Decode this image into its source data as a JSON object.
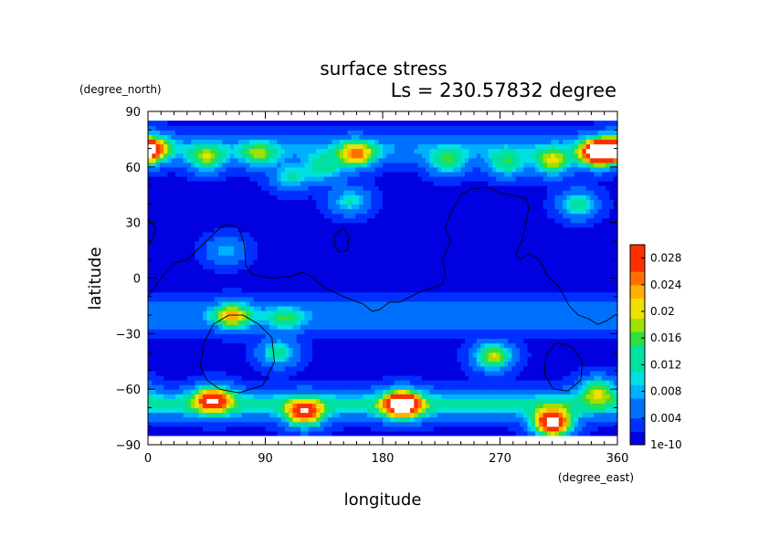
{
  "chart_data": {
    "type": "heatmap",
    "title": "surface stress",
    "subtitle": "Ls = 230.57832 degree",
    "xlabel": "longitude",
    "ylabel": "latitude",
    "x_unit": "(degree_east)",
    "y_unit": "(degree_north)",
    "xlim": [
      0,
      360
    ],
    "ylim": [
      -90,
      90
    ],
    "x_ticks": [
      "0",
      "90",
      "180",
      "270",
      "360"
    ],
    "y_ticks": [
      "90",
      "60",
      "30",
      "0",
      "−30",
      "−60",
      "−90"
    ],
    "colorbar": {
      "min": 0,
      "max": 0.03,
      "tick_labels": [
        "1e-10",
        "0.004",
        "0.008",
        "0.012",
        "0.016",
        "0.02",
        "0.024",
        "0.028"
      ],
      "tick_values": [
        0,
        0.004,
        0.008,
        0.012,
        0.016,
        0.02,
        0.024,
        0.028
      ],
      "levels": 16,
      "colors": [
        "#0000e0",
        "#0030ff",
        "#0070ff",
        "#00b0ff",
        "#00e0e0",
        "#00e0a0",
        "#30e040",
        "#a0e000",
        "#f0e000",
        "#ffb000",
        "#ff7000",
        "#ff3000",
        "#e00000"
      ]
    },
    "background_value": 0.0015,
    "hotspots": [
      {
        "lon": 2,
        "lat": 70,
        "value": 0.026
      },
      {
        "lon": 45,
        "lat": 65,
        "value": 0.014
      },
      {
        "lon": 85,
        "lat": 67,
        "value": 0.012
      },
      {
        "lon": 110,
        "lat": 55,
        "value": 0.01
      },
      {
        "lon": 135,
        "lat": 60,
        "value": 0.012
      },
      {
        "lon": 160,
        "lat": 67,
        "value": 0.02
      },
      {
        "lon": 230,
        "lat": 63,
        "value": 0.012
      },
      {
        "lon": 275,
        "lat": 62,
        "value": 0.012
      },
      {
        "lon": 310,
        "lat": 63,
        "value": 0.016
      },
      {
        "lon": 345,
        "lat": 68,
        "value": 0.034
      },
      {
        "lon": 330,
        "lat": 40,
        "value": 0.012
      },
      {
        "lon": 155,
        "lat": 42,
        "value": 0.01
      },
      {
        "lon": 60,
        "lat": 15,
        "value": 0.008
      },
      {
        "lon": 65,
        "lat": -20,
        "value": 0.018
      },
      {
        "lon": 105,
        "lat": -22,
        "value": 0.01
      },
      {
        "lon": 100,
        "lat": -40,
        "value": 0.012
      },
      {
        "lon": 265,
        "lat": -42,
        "value": 0.018
      },
      {
        "lon": 50,
        "lat": -65,
        "value": 0.024
      },
      {
        "lon": 120,
        "lat": -73,
        "value": 0.024
      },
      {
        "lon": 195,
        "lat": -68,
        "value": 0.034
      },
      {
        "lon": 310,
        "lat": -78,
        "value": 0.034
      },
      {
        "lon": 345,
        "lat": -60,
        "value": 0.014
      }
    ],
    "bands": [
      {
        "lat": 70,
        "value": 0.006
      },
      {
        "lat": -20,
        "value": 0.005
      },
      {
        "lat": -68,
        "value": 0.011
      }
    ]
  }
}
